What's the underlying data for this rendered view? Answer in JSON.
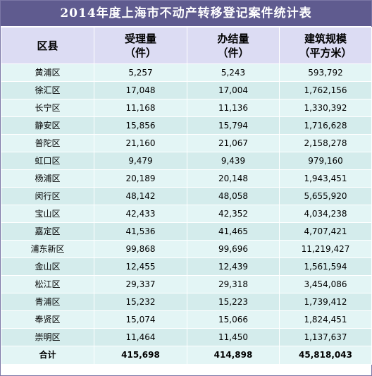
{
  "title": "2014年度上海市不动产转移登记案件统计表",
  "headers": {
    "district": "区县",
    "accepted_line1": "受理量",
    "accepted_line2": "（件）",
    "completed_line1": "办结量",
    "completed_line2": "（件）",
    "area_line1": "建筑规模",
    "area_line2": "（平方米）"
  },
  "rows": [
    {
      "district": "黄浦区",
      "accepted": "5,257",
      "completed": "5,243",
      "area": "593,792"
    },
    {
      "district": "徐汇区",
      "accepted": "17,048",
      "completed": "17,004",
      "area": "1,762,156"
    },
    {
      "district": "长宁区",
      "accepted": "11,168",
      "completed": "11,136",
      "area": "1,330,392"
    },
    {
      "district": "静安区",
      "accepted": "15,856",
      "completed": "15,794",
      "area": "1,716,628"
    },
    {
      "district": "普陀区",
      "accepted": "21,160",
      "completed": "21,067",
      "area": "2,158,278"
    },
    {
      "district": "虹口区",
      "accepted": "9,479",
      "completed": "9,439",
      "area": "979,160"
    },
    {
      "district": "杨浦区",
      "accepted": "20,189",
      "completed": "20,148",
      "area": "1,943,451"
    },
    {
      "district": "闵行区",
      "accepted": "48,142",
      "completed": "48,058",
      "area": "5,655,920"
    },
    {
      "district": "宝山区",
      "accepted": "42,433",
      "completed": "42,352",
      "area": "4,034,238"
    },
    {
      "district": "嘉定区",
      "accepted": "41,536",
      "completed": "41,465",
      "area": "4,707,421"
    },
    {
      "district": "浦东新区",
      "accepted": "99,868",
      "completed": "99,696",
      "area": "11,219,427"
    },
    {
      "district": "金山区",
      "accepted": "12,455",
      "completed": "12,439",
      "area": "1,561,594"
    },
    {
      "district": "松江区",
      "accepted": "29,337",
      "completed": "29,318",
      "area": "3,454,086"
    },
    {
      "district": "青浦区",
      "accepted": "15,232",
      "completed": "15,223",
      "area": "1,739,412"
    },
    {
      "district": "奉贤区",
      "accepted": "15,074",
      "completed": "15,066",
      "area": "1,824,451"
    },
    {
      "district": "崇明区",
      "accepted": "11,464",
      "completed": "11,450",
      "area": "1,137,637"
    }
  ],
  "total": {
    "district": "合计",
    "accepted": "415,698",
    "completed": "414,898",
    "area": "45,818,043"
  },
  "colors": {
    "title_bg": "#5f5b8f",
    "header_bg": "#dcdcf3",
    "row_light": "#e3f5f5",
    "row_dark": "#d4ecec"
  }
}
